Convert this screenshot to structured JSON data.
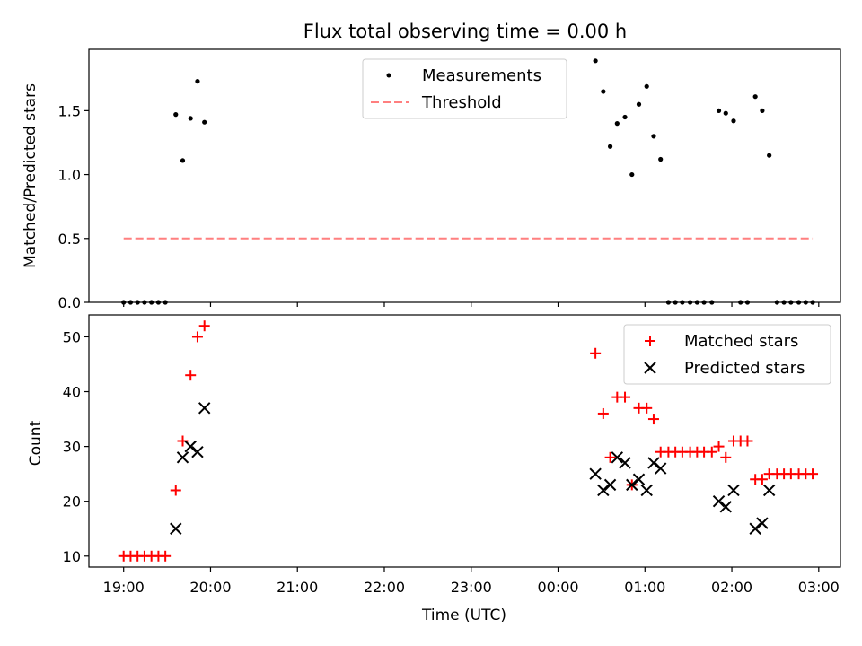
{
  "chart_data": [
    {
      "type": "scatter",
      "title": "Flux total observing time = 0.00 h",
      "ylabel": "Matched/Predicted stars",
      "ylim": [
        0,
        1.98
      ],
      "yticks": [
        0.0,
        0.5,
        1.0,
        1.5
      ],
      "ytick_labels": [
        "0.0",
        "0.5",
        "1.0",
        "1.5"
      ],
      "xlim": [
        18.6,
        27.25
      ],
      "xticks": [
        19,
        20,
        21,
        22,
        23,
        24,
        25,
        26,
        27
      ],
      "legend_position": "top-center",
      "series": [
        {
          "name": "Measurements",
          "style": "points",
          "color": "#000000",
          "points": [
            [
              19.0,
              0
            ],
            [
              19.08,
              0
            ],
            [
              19.16,
              0
            ],
            [
              19.24,
              0
            ],
            [
              19.32,
              0
            ],
            [
              19.4,
              0
            ],
            [
              19.48,
              0
            ],
            [
              19.6,
              1.47
            ],
            [
              19.68,
              1.11
            ],
            [
              19.77,
              1.44
            ],
            [
              19.85,
              1.73
            ],
            [
              19.93,
              1.41
            ],
            [
              24.43,
              1.89
            ],
            [
              24.52,
              1.65
            ],
            [
              24.6,
              1.22
            ],
            [
              24.68,
              1.4
            ],
            [
              24.77,
              1.45
            ],
            [
              24.85,
              1.0
            ],
            [
              24.93,
              1.55
            ],
            [
              25.02,
              1.69
            ],
            [
              25.1,
              1.3
            ],
            [
              25.18,
              1.12
            ],
            [
              25.27,
              0
            ],
            [
              25.35,
              0
            ],
            [
              25.43,
              0
            ],
            [
              25.52,
              0
            ],
            [
              25.6,
              0
            ],
            [
              25.68,
              0
            ],
            [
              25.77,
              0
            ],
            [
              25.85,
              1.5
            ],
            [
              25.93,
              1.48
            ],
            [
              26.02,
              1.42
            ],
            [
              26.1,
              0
            ],
            [
              26.18,
              0
            ],
            [
              26.27,
              1.61
            ],
            [
              26.35,
              1.5
            ],
            [
              26.43,
              1.15
            ],
            [
              26.52,
              0
            ],
            [
              26.6,
              0
            ],
            [
              26.68,
              0
            ],
            [
              26.77,
              0
            ],
            [
              26.85,
              0
            ],
            [
              26.93,
              0
            ]
          ]
        },
        {
          "name": "Threshold",
          "style": "dashed-line",
          "color": "#ff7f7f",
          "x": [
            19.0,
            26.93
          ],
          "y": [
            0.5,
            0.5
          ]
        }
      ]
    },
    {
      "type": "scatter",
      "xlabel": "Time (UTC)",
      "ylabel": "Count",
      "ylim": [
        8,
        54
      ],
      "yticks": [
        10,
        20,
        30,
        40,
        50
      ],
      "ytick_labels": [
        "10",
        "20",
        "30",
        "40",
        "50"
      ],
      "xlim": [
        18.6,
        27.25
      ],
      "xticks": [
        19,
        20,
        21,
        22,
        23,
        24,
        25,
        26,
        27
      ],
      "xtick_labels": [
        "19:00",
        "20:00",
        "21:00",
        "22:00",
        "23:00",
        "00:00",
        "01:00",
        "02:00",
        "03:00"
      ],
      "legend_position": "top-right",
      "series": [
        {
          "name": "Matched stars",
          "marker": "plus",
          "color": "#ff0000",
          "points": [
            [
              19.0,
              10
            ],
            [
              19.08,
              10
            ],
            [
              19.16,
              10
            ],
            [
              19.24,
              10
            ],
            [
              19.32,
              10
            ],
            [
              19.4,
              10
            ],
            [
              19.48,
              10
            ],
            [
              19.6,
              22
            ],
            [
              19.68,
              31
            ],
            [
              19.77,
              43
            ],
            [
              19.85,
              50
            ],
            [
              19.93,
              52
            ],
            [
              24.43,
              47
            ],
            [
              24.52,
              36
            ],
            [
              24.6,
              28
            ],
            [
              24.68,
              39
            ],
            [
              24.77,
              39
            ],
            [
              24.85,
              23
            ],
            [
              24.93,
              37
            ],
            [
              25.02,
              37
            ],
            [
              25.1,
              35
            ],
            [
              25.18,
              29
            ],
            [
              25.27,
              29
            ],
            [
              25.35,
              29
            ],
            [
              25.43,
              29
            ],
            [
              25.52,
              29
            ],
            [
              25.6,
              29
            ],
            [
              25.68,
              29
            ],
            [
              25.77,
              29
            ],
            [
              25.85,
              30
            ],
            [
              25.93,
              28
            ],
            [
              26.02,
              31
            ],
            [
              26.1,
              31
            ],
            [
              26.18,
              31
            ],
            [
              26.27,
              24
            ],
            [
              26.35,
              24
            ],
            [
              26.43,
              25
            ],
            [
              26.52,
              25
            ],
            [
              26.6,
              25
            ],
            [
              26.68,
              25
            ],
            [
              26.77,
              25
            ],
            [
              26.85,
              25
            ],
            [
              26.93,
              25
            ]
          ]
        },
        {
          "name": "Predicted stars",
          "marker": "x",
          "color": "#000000",
          "points": [
            [
              19.6,
              15
            ],
            [
              19.68,
              28
            ],
            [
              19.77,
              30
            ],
            [
              19.85,
              29
            ],
            [
              19.93,
              37
            ],
            [
              24.43,
              25
            ],
            [
              24.52,
              22
            ],
            [
              24.6,
              23
            ],
            [
              24.68,
              28
            ],
            [
              24.77,
              27
            ],
            [
              24.85,
              23
            ],
            [
              24.93,
              24
            ],
            [
              25.02,
              22
            ],
            [
              25.1,
              27
            ],
            [
              25.18,
              26
            ],
            [
              25.85,
              20
            ],
            [
              25.93,
              19
            ],
            [
              26.02,
              22
            ],
            [
              26.27,
              15
            ],
            [
              26.35,
              16
            ],
            [
              26.43,
              22
            ]
          ]
        }
      ]
    }
  ]
}
